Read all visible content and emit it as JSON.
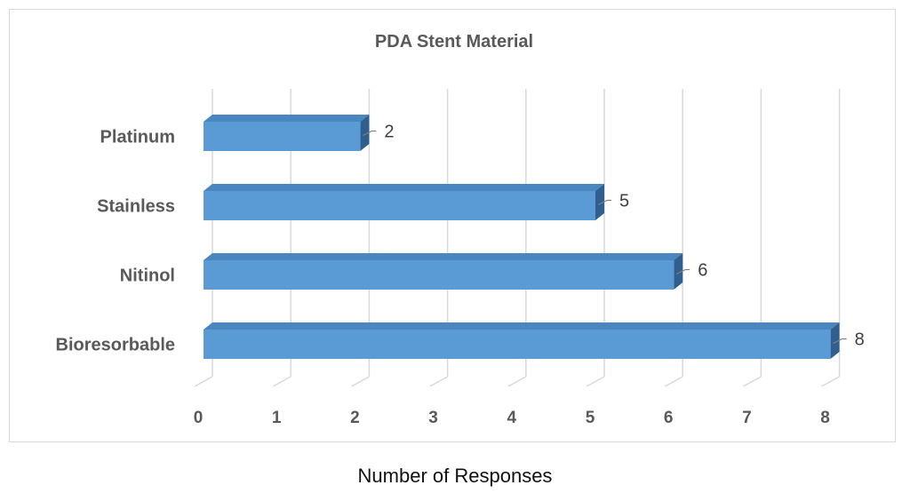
{
  "chart_data": {
    "type": "bar",
    "orientation": "horizontal",
    "title": "PDA Stent Material",
    "xlabel": "Number of Responses",
    "ylabel": "",
    "categories": [
      "Platinum",
      "Stainless",
      "Nitinol",
      "Bioresorbable"
    ],
    "values": [
      2,
      5,
      6,
      8
    ],
    "data_labels": [
      "2",
      "5",
      "6",
      "8"
    ],
    "x_ticks": [
      "0",
      "1",
      "2",
      "3",
      "4",
      "5",
      "6",
      "7",
      "8"
    ],
    "xlim": [
      0,
      8
    ],
    "grid": true,
    "legend": "none",
    "style": "3d"
  },
  "colors": {
    "bar_front": "#5b9bd5",
    "bar_top": "#4a86bf",
    "bar_side": "#2f5f8f",
    "grid": "#d9d9d9",
    "text": "#595959"
  }
}
